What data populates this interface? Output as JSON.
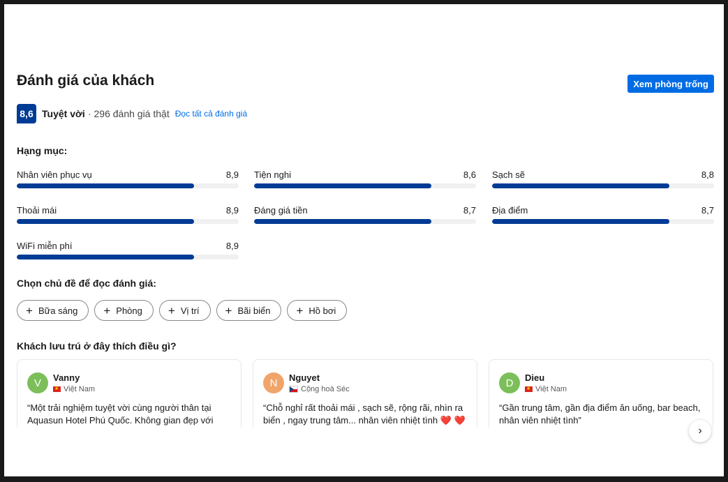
{
  "header": {
    "title": "Đánh giá của khách",
    "cta_label": "Xem phòng trống"
  },
  "summary": {
    "score": "8,6",
    "label": "Tuyệt vời",
    "separator": "·",
    "count_text": "296 đánh giá thật",
    "read_all": "Đọc tất cả đánh giá"
  },
  "categories": {
    "heading": "Hạng mục:",
    "items": [
      {
        "name": "Nhân viên phục vụ",
        "score": "8,9",
        "fill_fraction": 0.8
      },
      {
        "name": "Tiện nghi",
        "score": "8,6",
        "fill_fraction": 0.8
      },
      {
        "name": "Sạch sẽ",
        "score": "8,8",
        "fill_fraction": 0.8
      },
      {
        "name": "Thoải mái",
        "score": "8,9",
        "fill_fraction": 0.8
      },
      {
        "name": "Đáng giá tiền",
        "score": "8,7",
        "fill_fraction": 0.8
      },
      {
        "name": "Địa điểm",
        "score": "8,7",
        "fill_fraction": 0.8
      },
      {
        "name": "WiFi miễn phí",
        "score": "8,9",
        "fill_fraction": 0.8
      }
    ]
  },
  "topics": {
    "heading": "Chọn chủ đề để đọc đánh giá:",
    "chips": [
      "Bữa sáng",
      "Phòng",
      "Vị trí",
      "Bãi biển",
      "Hồ bơi"
    ]
  },
  "liked": {
    "heading": "Khách lưu trú ở đây thích điều gì?",
    "reviews": [
      {
        "initial": "V",
        "name": "Vanny",
        "country": "Việt Nam",
        "flag": "vn",
        "avatar_color": "#7cbf5a",
        "quote": "“Một trải nghiệm tuyệt vời cùng người thân tại Aquasun Hotel Phú Quốc. Không gian đẹp với view hoàng hôn cực chill, đồ"
      },
      {
        "initial": "N",
        "name": "Nguyet",
        "country": "Cộng hoà Séc",
        "flag": "cz",
        "avatar_color": "#f0a46a",
        "quote": "“Chỗ nghỉ rất thoải mái , sạch sẽ, rộng rãi, nhìn ra biển , ngay trung tâm... nhân viên nhiệt tình ❤️ ❤️ ❤️”"
      },
      {
        "initial": "D",
        "name": "Dieu",
        "country": "Việt Nam",
        "flag": "vn",
        "avatar_color": "#7cbf5a",
        "quote": "“Gần trung tâm, gần địa điểm ăn uống, bar beach, nhân viên nhiệt tình”"
      }
    ],
    "next_icon": "chevron-right-icon"
  },
  "colors": {
    "brand_dark": "#003b95",
    "primary": "#006ce4"
  }
}
